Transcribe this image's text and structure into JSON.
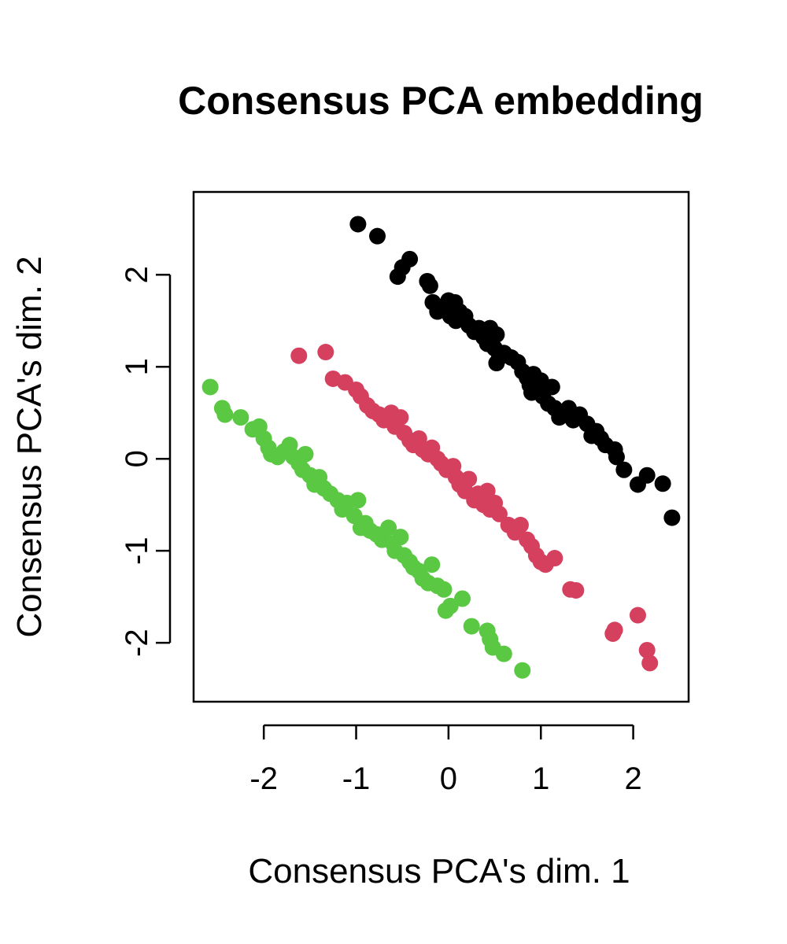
{
  "chart_data": {
    "type": "scatter",
    "title": "Consensus PCA embedding",
    "xlabel": "Consensus PCA's dim. 1",
    "ylabel": "Consensus PCA's dim. 2",
    "xlim": [
      -2.76,
      2.6
    ],
    "ylim": [
      -2.64,
      2.9
    ],
    "xticks": [
      -2,
      -1,
      0,
      1,
      2
    ],
    "yticks": [
      -2,
      -1,
      0,
      1,
      2
    ],
    "grid": false,
    "legend": "none",
    "series": [
      {
        "color": "#000000",
        "points": [
          [
            -0.98,
            2.55
          ],
          [
            -0.77,
            2.42
          ],
          [
            -0.42,
            2.17
          ],
          [
            -0.5,
            2.08
          ],
          [
            -0.55,
            1.98
          ],
          [
            -0.23,
            1.93
          ],
          [
            -0.2,
            1.88
          ],
          [
            -0.17,
            1.7
          ],
          [
            -0.12,
            1.6
          ],
          [
            -0.07,
            1.65
          ],
          [
            0.0,
            1.72
          ],
          [
            0.02,
            1.55
          ],
          [
            0.07,
            1.7
          ],
          [
            0.08,
            1.5
          ],
          [
            0.12,
            1.6
          ],
          [
            0.18,
            1.55
          ],
          [
            0.22,
            1.45
          ],
          [
            0.28,
            1.38
          ],
          [
            0.33,
            1.42
          ],
          [
            0.38,
            1.32
          ],
          [
            0.42,
            1.25
          ],
          [
            0.45,
            1.42
          ],
          [
            0.5,
            1.2
          ],
          [
            0.52,
            1.35
          ],
          [
            0.55,
            1.1
          ],
          [
            0.52,
            1.04
          ],
          [
            0.6,
            1.15
          ],
          [
            0.68,
            1.1
          ],
          [
            0.75,
            1.05
          ],
          [
            0.8,
            0.95
          ],
          [
            0.85,
            0.88
          ],
          [
            0.88,
            0.8
          ],
          [
            0.92,
            0.92
          ],
          [
            0.95,
            0.75
          ],
          [
            0.9,
            0.72
          ],
          [
            1.0,
            0.85
          ],
          [
            1.02,
            0.68
          ],
          [
            1.08,
            0.6
          ],
          [
            1.12,
            0.78
          ],
          [
            1.15,
            0.55
          ],
          [
            1.2,
            0.45
          ],
          [
            1.25,
            0.5
          ],
          [
            1.3,
            0.55
          ],
          [
            1.35,
            0.42
          ],
          [
            1.42,
            0.48
          ],
          [
            1.5,
            0.38
          ],
          [
            1.55,
            0.25
          ],
          [
            1.6,
            0.3
          ],
          [
            1.65,
            0.22
          ],
          [
            1.7,
            0.15
          ],
          [
            1.8,
            0.1
          ],
          [
            1.82,
            0.02
          ],
          [
            1.9,
            -0.12
          ],
          [
            2.05,
            -0.28
          ],
          [
            2.15,
            -0.18
          ],
          [
            2.32,
            -0.27
          ],
          [
            2.42,
            -0.64
          ]
        ]
      },
      {
        "color": "#d6405f",
        "points": [
          [
            -1.62,
            1.12
          ],
          [
            -1.33,
            1.16
          ],
          [
            -1.25,
            0.87
          ],
          [
            -1.12,
            0.83
          ],
          [
            -1.0,
            0.75
          ],
          [
            -0.95,
            0.68
          ],
          [
            -0.88,
            0.58
          ],
          [
            -0.82,
            0.52
          ],
          [
            -0.75,
            0.48
          ],
          [
            -0.7,
            0.42
          ],
          [
            -0.62,
            0.5
          ],
          [
            -0.58,
            0.35
          ],
          [
            -0.52,
            0.45
          ],
          [
            -0.48,
            0.28
          ],
          [
            -0.42,
            0.2
          ],
          [
            -0.38,
            0.15
          ],
          [
            -0.32,
            0.22
          ],
          [
            -0.28,
            0.1
          ],
          [
            -0.22,
            0.05
          ],
          [
            -0.18,
            0.12
          ],
          [
            -0.12,
            0.0
          ],
          [
            -0.08,
            -0.05
          ],
          [
            -0.02,
            -0.12
          ],
          [
            0.05,
            -0.08
          ],
          [
            0.08,
            -0.2
          ],
          [
            0.12,
            -0.28
          ],
          [
            0.18,
            -0.35
          ],
          [
            0.22,
            -0.22
          ],
          [
            0.28,
            -0.45
          ],
          [
            0.32,
            -0.38
          ],
          [
            0.38,
            -0.5
          ],
          [
            0.42,
            -0.35
          ],
          [
            0.45,
            -0.55
          ],
          [
            0.5,
            -0.48
          ],
          [
            0.55,
            -0.6
          ],
          [
            0.65,
            -0.72
          ],
          [
            0.72,
            -0.8
          ],
          [
            0.78,
            -0.72
          ],
          [
            0.85,
            -0.88
          ],
          [
            0.9,
            -0.95
          ],
          [
            0.95,
            -1.05
          ],
          [
            1.0,
            -1.12
          ],
          [
            1.05,
            -1.15
          ],
          [
            1.15,
            -1.08
          ],
          [
            1.32,
            -1.42
          ],
          [
            1.38,
            -1.43
          ],
          [
            1.78,
            -1.9
          ],
          [
            1.8,
            -1.86
          ],
          [
            2.05,
            -1.7
          ],
          [
            2.15,
            -2.08
          ],
          [
            2.18,
            -2.22
          ]
        ]
      },
      {
        "color": "#5ac843",
        "points": [
          [
            -2.58,
            0.78
          ],
          [
            -2.45,
            0.55
          ],
          [
            -2.42,
            0.48
          ],
          [
            -2.25,
            0.45
          ],
          [
            -2.12,
            0.32
          ],
          [
            -2.05,
            0.35
          ],
          [
            -2.0,
            0.22
          ],
          [
            -1.95,
            0.12
          ],
          [
            -1.92,
            0.05
          ],
          [
            -1.85,
            0.02
          ],
          [
            -1.78,
            0.08
          ],
          [
            -1.72,
            0.15
          ],
          [
            -1.68,
            0.02
          ],
          [
            -1.62,
            -0.05
          ],
          [
            -1.58,
            -0.12
          ],
          [
            -1.55,
            0.05
          ],
          [
            -1.5,
            -0.18
          ],
          [
            -1.45,
            -0.28
          ],
          [
            -1.4,
            -0.2
          ],
          [
            -1.35,
            -0.32
          ],
          [
            -1.28,
            -0.38
          ],
          [
            -1.2,
            -0.45
          ],
          [
            -1.15,
            -0.55
          ],
          [
            -1.1,
            -0.48
          ],
          [
            -1.02,
            -0.62
          ],
          [
            -0.98,
            -0.45
          ],
          [
            -0.95,
            -0.75
          ],
          [
            -0.9,
            -0.7
          ],
          [
            -0.85,
            -0.78
          ],
          [
            -0.78,
            -0.82
          ],
          [
            -0.72,
            -0.88
          ],
          [
            -0.65,
            -0.75
          ],
          [
            -0.6,
            -0.92
          ],
          [
            -0.58,
            -1.0
          ],
          [
            -0.52,
            -0.85
          ],
          [
            -0.48,
            -1.05
          ],
          [
            -0.42,
            -1.12
          ],
          [
            -0.38,
            -1.18
          ],
          [
            -0.32,
            -1.22
          ],
          [
            -0.28,
            -1.3
          ],
          [
            -0.22,
            -1.35
          ],
          [
            -0.18,
            -1.15
          ],
          [
            -0.12,
            -1.38
          ],
          [
            -0.05,
            -1.42
          ],
          [
            -0.03,
            -1.65
          ],
          [
            0.02,
            -1.6
          ],
          [
            0.15,
            -1.52
          ],
          [
            0.25,
            -1.82
          ],
          [
            0.42,
            -1.87
          ],
          [
            0.45,
            -1.96
          ],
          [
            0.48,
            -2.05
          ],
          [
            0.6,
            -2.12
          ],
          [
            0.8,
            -2.3
          ]
        ]
      }
    ]
  }
}
